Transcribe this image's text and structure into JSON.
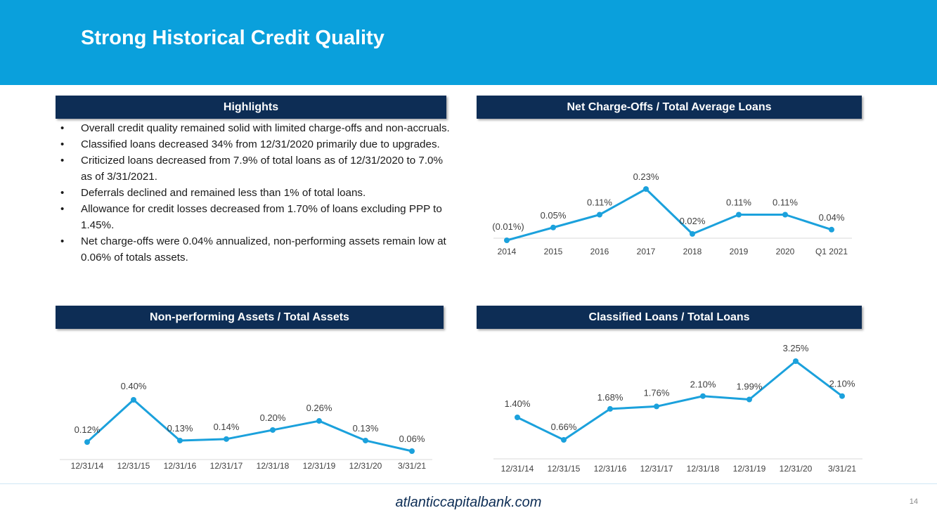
{
  "title": "Strong Historical Credit Quality",
  "highlights": {
    "header": "Highlights",
    "items": [
      "Overall credit quality remained solid with limited charge-offs and non-accruals.",
      "Classified loans decreased 34% from 12/31/2020 primarily due to upgrades.",
      "Criticized loans decreased from 7.9% of total loans as of 12/31/2020 to 7.0% as of 3/31/2021.",
      "Deferrals declined and remained less than 1% of total loans.",
      "Allowance for credit losses decreased from 1.70% of loans excluding PPP to 1.45%.",
      "Net charge-offs were 0.04% annualized, non-performing assets remain low at 0.06% of totals assets."
    ]
  },
  "colors": {
    "title_bar": "#0aa0dc",
    "section_header": "#0d2d55",
    "line": "#1ba1dc"
  },
  "chart_data": [
    {
      "id": "nco",
      "type": "line",
      "title": "Net Charge-Offs / Total Average Loans",
      "categories": [
        "2014",
        "2015",
        "2016",
        "2017",
        "2018",
        "2019",
        "2020",
        "Q1 2021"
      ],
      "values": [
        -0.01,
        0.05,
        0.11,
        0.23,
        0.02,
        0.11,
        0.11,
        0.04
      ],
      "labels": [
        "(0.01%)",
        "0.05%",
        "0.11%",
        "0.23%",
        "0.02%",
        "0.11%",
        "0.11%",
        "0.04%"
      ],
      "ylim": [
        -0.01,
        0.23
      ]
    },
    {
      "id": "npa",
      "type": "line",
      "title": "Non-performing Assets / Total Assets",
      "categories": [
        "12/31/14",
        "12/31/15",
        "12/31/16",
        "12/31/17",
        "12/31/18",
        "12/31/19",
        "12/31/20",
        "3/31/21"
      ],
      "values": [
        0.12,
        0.4,
        0.13,
        0.14,
        0.2,
        0.26,
        0.13,
        0.06
      ],
      "labels": [
        "0.12%",
        "0.40%",
        "0.13%",
        "0.14%",
        "0.20%",
        "0.26%",
        "0.13%",
        "0.06%"
      ],
      "ylim": [
        0.06,
        0.4
      ]
    },
    {
      "id": "cls",
      "type": "line",
      "title": "Classified Loans / Total Loans",
      "categories": [
        "12/31/14",
        "12/31/15",
        "12/31/16",
        "12/31/17",
        "12/31/18",
        "12/31/19",
        "12/31/20",
        "3/31/21"
      ],
      "values": [
        1.4,
        0.66,
        1.68,
        1.76,
        2.1,
        1.99,
        3.25,
        2.1
      ],
      "labels": [
        "1.40%",
        "0.66%",
        "1.68%",
        "1.76%",
        "2.10%",
        "1.99%",
        "3.25%",
        "2.10%"
      ],
      "ylim": [
        0.66,
        3.25
      ]
    }
  ],
  "footer": {
    "url": "atlanticcapitalbank.com",
    "page": "14"
  }
}
